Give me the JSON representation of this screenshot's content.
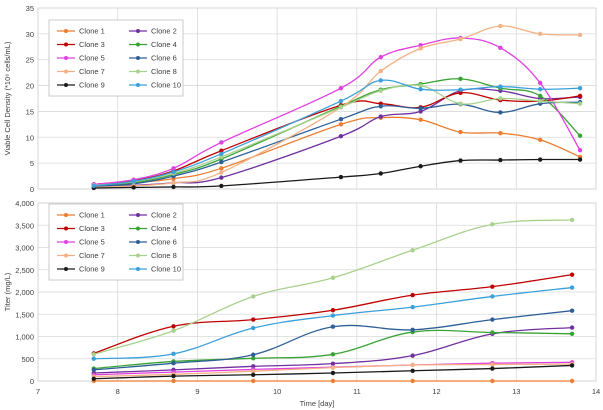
{
  "chart_data": [
    {
      "type": "line",
      "title": "",
      "xlabel": "",
      "ylabel": "Viable Cell Density (*10⁶ cells/mL)",
      "xlim": [
        7,
        14
      ],
      "ylim": [
        0,
        35
      ],
      "yticks": [
        0,
        5,
        10,
        15,
        20,
        25,
        30,
        35
      ],
      "grid": true,
      "legend": "top-left",
      "series": [
        {
          "name": "Clone 1",
          "color": "#ed7d31",
          "x": [
            7.7,
            8.2,
            8.7,
            9.3,
            10.8,
            11.3,
            11.8,
            12.3,
            12.8,
            13.3,
            13.8
          ],
          "y": [
            0.7,
            1.2,
            2.0,
            4.0,
            12.5,
            13.8,
            13.4,
            11.0,
            10.8,
            9.5,
            6.2
          ]
        },
        {
          "name": "Clone 2",
          "color": "#7030a0",
          "x": [
            7.7,
            8.2,
            8.7,
            9.3,
            10.8,
            11.3,
            11.8,
            12.3,
            12.8,
            13.3,
            13.8
          ],
          "y": [
            0.5,
            0.7,
            1.2,
            2.2,
            10.2,
            14.0,
            15.0,
            19.0,
            19.0,
            17.5,
            17.8
          ]
        },
        {
          "name": "Clone 3",
          "color": "#c00000",
          "x": [
            7.7,
            8.2,
            8.7,
            9.3,
            10.8,
            11.3,
            11.8,
            12.3,
            12.8,
            13.3,
            13.8
          ],
          "y": [
            0.9,
            1.6,
            3.5,
            7.4,
            16.2,
            16.5,
            15.8,
            18.6,
            17.2,
            17.0,
            18.0
          ]
        },
        {
          "name": "Clone 4",
          "color": "#3aa335",
          "x": [
            7.7,
            8.2,
            8.7,
            9.3,
            10.8,
            11.3,
            11.8,
            12.3,
            12.8,
            13.3,
            13.8
          ],
          "y": [
            0.6,
            1.2,
            2.8,
            5.8,
            16.0,
            19.2,
            20.3,
            21.3,
            19.5,
            18.0,
            10.3
          ]
        },
        {
          "name": "Clone 5",
          "color": "#e040e0",
          "x": [
            7.7,
            8.2,
            8.7,
            9.3,
            10.8,
            11.3,
            11.8,
            12.3,
            12.8,
            13.3,
            13.8
          ],
          "y": [
            0.9,
            1.8,
            4.0,
            9.0,
            19.5,
            25.5,
            27.8,
            29.2,
            27.3,
            20.5,
            7.5
          ]
        },
        {
          "name": "Clone 6",
          "color": "#2e5f98",
          "x": [
            7.7,
            8.2,
            8.7,
            9.3,
            10.8,
            11.3,
            11.8,
            12.3,
            12.8,
            13.3,
            13.8
          ],
          "y": [
            0.5,
            1.0,
            2.5,
            5.2,
            13.5,
            16.0,
            15.6,
            16.4,
            14.8,
            16.5,
            16.8
          ]
        },
        {
          "name": "Clone 7",
          "color": "#f4b183",
          "x": [
            7.7,
            8.2,
            8.7,
            9.3,
            10.8,
            11.3,
            11.8,
            12.3,
            12.8,
            13.3,
            13.8
          ],
          "y": [
            0.3,
            0.6,
            1.2,
            3.2,
            15.8,
            22.8,
            27.2,
            29.0,
            31.5,
            30.0,
            29.8
          ]
        },
        {
          "name": "Clone 8",
          "color": "#a9d18e",
          "x": [
            7.7,
            8.2,
            8.7,
            9.3,
            10.8,
            11.3,
            11.8,
            12.3,
            12.8,
            13.3,
            13.8
          ],
          "y": [
            0.7,
            1.4,
            3.0,
            6.2,
            15.8,
            19.0,
            20.0,
            16.5,
            17.5,
            17.0,
            16.5
          ]
        },
        {
          "name": "Clone 9",
          "color": "#1a1a1a",
          "x": [
            7.7,
            8.2,
            8.7,
            9.3,
            10.8,
            11.3,
            11.8,
            12.3,
            12.8,
            13.3,
            13.8
          ],
          "y": [
            0.2,
            0.3,
            0.4,
            0.6,
            2.3,
            3.0,
            4.4,
            5.5,
            5.6,
            5.7,
            5.7
          ]
        },
        {
          "name": "Clone 10",
          "color": "#3aa0dc",
          "x": [
            7.7,
            8.2,
            8.7,
            9.3,
            10.8,
            11.3,
            11.8,
            12.3,
            12.8,
            13.3,
            13.8
          ],
          "y": [
            0.6,
            1.5,
            3.3,
            6.8,
            17.0,
            21.0,
            19.3,
            19.2,
            19.8,
            19.3,
            19.5
          ]
        }
      ]
    },
    {
      "type": "line",
      "title": "",
      "xlabel": "Time [day]",
      "ylabel": "Titer (mg/L)",
      "xlim": [
        7,
        14
      ],
      "ylim": [
        0,
        4000
      ],
      "xticks": [
        7,
        8,
        9,
        10,
        11,
        12,
        13,
        14
      ],
      "yticks": [
        "0",
        "500",
        "1,000",
        "1,500",
        "2,000",
        "2,500",
        "3,000",
        "3,500",
        "4,000"
      ],
      "ytick_values": [
        0,
        500,
        1000,
        1500,
        2000,
        2500,
        3000,
        3500,
        4000
      ],
      "grid": true,
      "legend": "top-left",
      "series": [
        {
          "name": "Clone 1",
          "color": "#ed7d31",
          "x": [
            7.7,
            8.7,
            9.7,
            10.7,
            11.7,
            12.7,
            13.7
          ],
          "y": [
            0,
            0,
            0,
            0,
            0,
            0,
            0
          ]
        },
        {
          "name": "Clone 2",
          "color": "#7030a0",
          "x": [
            7.7,
            8.7,
            9.7,
            10.7,
            11.7,
            12.7,
            13.7
          ],
          "y": [
            180,
            250,
            330,
            390,
            570,
            1060,
            1200
          ]
        },
        {
          "name": "Clone 3",
          "color": "#c00000",
          "x": [
            7.7,
            8.7,
            9.7,
            10.7,
            11.7,
            12.7,
            13.7
          ],
          "y": [
            620,
            1230,
            1380,
            1590,
            1930,
            2120,
            2390
          ]
        },
        {
          "name": "Clone 4",
          "color": "#3aa335",
          "x": [
            7.7,
            8.7,
            9.7,
            10.7,
            11.7,
            12.7,
            13.7
          ],
          "y": [
            280,
            440,
            510,
            600,
            1100,
            1090,
            1060
          ]
        },
        {
          "name": "Clone 5",
          "color": "#e040e0",
          "x": [
            7.7,
            8.7,
            9.7,
            10.7,
            11.7,
            12.7,
            13.7
          ],
          "y": [
            140,
            200,
            260,
            310,
            360,
            400,
            420
          ]
        },
        {
          "name": "Clone 6",
          "color": "#2e5f98",
          "x": [
            7.7,
            8.7,
            9.7,
            10.7,
            11.7,
            12.7,
            13.7
          ],
          "y": [
            250,
            400,
            590,
            1220,
            1150,
            1380,
            1580
          ]
        },
        {
          "name": "Clone 7",
          "color": "#f4b183",
          "x": [
            7.7,
            8.7,
            9.7,
            10.7,
            11.7,
            12.7,
            13.7
          ],
          "y": [
            100,
            150,
            220,
            300,
            360,
            370,
            380
          ]
        },
        {
          "name": "Clone 8",
          "color": "#a9d18e",
          "x": [
            7.7,
            8.7,
            9.7,
            10.7,
            11.7,
            12.7,
            13.7
          ],
          "y": [
            600,
            1130,
            1900,
            2320,
            2940,
            3520,
            3620
          ]
        },
        {
          "name": "Clone 9",
          "color": "#1a1a1a",
          "x": [
            7.7,
            8.7,
            9.7,
            10.7,
            11.7,
            12.7,
            13.7
          ],
          "y": [
            50,
            110,
            140,
            180,
            230,
            280,
            350
          ]
        },
        {
          "name": "Clone 10",
          "color": "#3aa0dc",
          "x": [
            7.7,
            8.7,
            9.7,
            10.7,
            11.7,
            12.7,
            13.7
          ],
          "y": [
            500,
            610,
            1190,
            1470,
            1660,
            1900,
            2100
          ]
        }
      ]
    }
  ]
}
